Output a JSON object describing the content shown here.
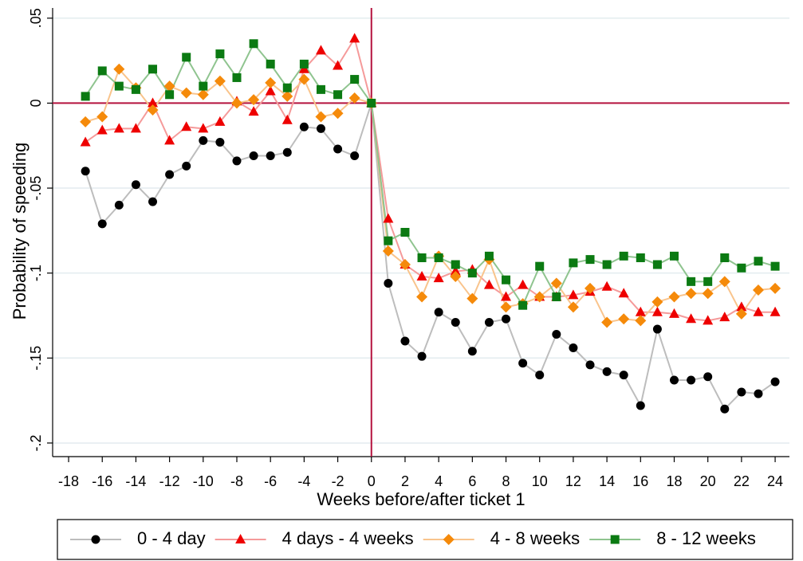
{
  "chart_data": {
    "type": "line",
    "x_label": "Weeks before/after ticket 1",
    "y_label": "Probability of speeding",
    "x": [
      -17,
      -16,
      -15,
      -14,
      -13,
      -12,
      -11,
      -10,
      -9,
      -8,
      -7,
      -6,
      -5,
      -4,
      -3,
      -2,
      -1,
      0,
      1,
      2,
      3,
      4,
      5,
      6,
      7,
      8,
      9,
      10,
      11,
      12,
      13,
      14,
      15,
      16,
      17,
      18,
      19,
      20,
      21,
      22,
      23,
      24
    ],
    "xlim": [
      -18.95,
      24.85
    ],
    "xticks": [
      -18,
      -16,
      -14,
      -12,
      -10,
      -8,
      -6,
      -4,
      -2,
      0,
      2,
      4,
      6,
      8,
      10,
      12,
      14,
      16,
      18,
      20,
      22,
      24
    ],
    "ylim": [
      -0.208,
      0.056
    ],
    "yticks": [
      {
        "value": 0.05,
        "label": ".05"
      },
      0,
      {
        "value": -0.05,
        "label": "-.05"
      },
      {
        "value": -0.1,
        "label": "-.1"
      },
      {
        "value": -0.15,
        "label": "-.15"
      },
      {
        "value": -0.2,
        "label": "-.2"
      }
    ],
    "grid": true,
    "reference_lines": [
      {
        "axis": "x",
        "value": 0,
        "color": "#b5123e"
      },
      {
        "axis": "y",
        "value": 0,
        "color": "#b5123e"
      }
    ],
    "legend": "bottom",
    "series": [
      {
        "name": "0 - 4 day",
        "color": "#000000",
        "line_color": "#bdbdbd",
        "marker": "circle",
        "values": [
          -0.04,
          -0.071,
          -0.06,
          -0.048,
          -0.058,
          -0.042,
          -0.037,
          -0.022,
          -0.023,
          -0.034,
          -0.031,
          -0.031,
          -0.029,
          -0.014,
          -0.015,
          -0.027,
          -0.031,
          0,
          -0.106,
          -0.14,
          -0.149,
          -0.123,
          -0.129,
          -0.146,
          -0.129,
          -0.127,
          -0.153,
          -0.16,
          -0.136,
          -0.144,
          -0.154,
          -0.158,
          -0.16,
          -0.178,
          -0.133,
          -0.163,
          -0.163,
          -0.161,
          -0.18,
          -0.17,
          -0.171,
          -0.164
        ]
      },
      {
        "name": "4 days - 4 weeks",
        "color": "#ee0000",
        "line_color": "#f59a9a",
        "marker": "triangle",
        "values": [
          -0.023,
          -0.016,
          -0.015,
          -0.015,
          0.0,
          -0.022,
          -0.014,
          -0.015,
          -0.011,
          0.001,
          -0.005,
          0.007,
          -0.01,
          0.02,
          0.031,
          0.022,
          0.038,
          0,
          -0.068,
          -0.095,
          -0.102,
          -0.103,
          -0.099,
          -0.098,
          -0.107,
          -0.114,
          -0.107,
          -0.114,
          -0.114,
          -0.113,
          -0.111,
          -0.108,
          -0.112,
          -0.123,
          -0.123,
          -0.124,
          -0.127,
          -0.128,
          -0.126,
          -0.12,
          -0.123,
          -0.123
        ]
      },
      {
        "name": "4 - 8 weeks",
        "color": "#f58a0a",
        "line_color": "#f9c48c",
        "marker": "diamond",
        "values": [
          -0.011,
          -0.008,
          0.02,
          0.009,
          -0.004,
          0.01,
          0.006,
          0.005,
          0.013,
          0.0,
          0.002,
          0.012,
          0.004,
          0.014,
          -0.008,
          -0.006,
          0.003,
          0,
          -0.087,
          -0.095,
          -0.114,
          -0.09,
          -0.102,
          -0.115,
          -0.092,
          -0.12,
          -0.118,
          -0.114,
          -0.106,
          -0.12,
          -0.109,
          -0.129,
          -0.127,
          -0.128,
          -0.117,
          -0.114,
          -0.112,
          -0.112,
          -0.105,
          -0.124,
          -0.11,
          -0.109
        ]
      },
      {
        "name": "8 - 12 weeks",
        "color": "#0b7a12",
        "line_color": "#8fc48f",
        "marker": "square",
        "values": [
          0.004,
          0.019,
          0.01,
          0.008,
          0.02,
          0.005,
          0.027,
          0.01,
          0.029,
          0.015,
          0.035,
          0.023,
          0.009,
          0.023,
          0.008,
          0.005,
          0.014,
          0,
          -0.081,
          -0.076,
          -0.091,
          -0.091,
          -0.095,
          -0.1,
          -0.09,
          -0.104,
          -0.119,
          -0.096,
          -0.114,
          -0.094,
          -0.092,
          -0.095,
          -0.09,
          -0.091,
          -0.095,
          -0.09,
          -0.105,
          -0.105,
          -0.091,
          -0.097,
          -0.093,
          -0.096
        ]
      }
    ]
  }
}
